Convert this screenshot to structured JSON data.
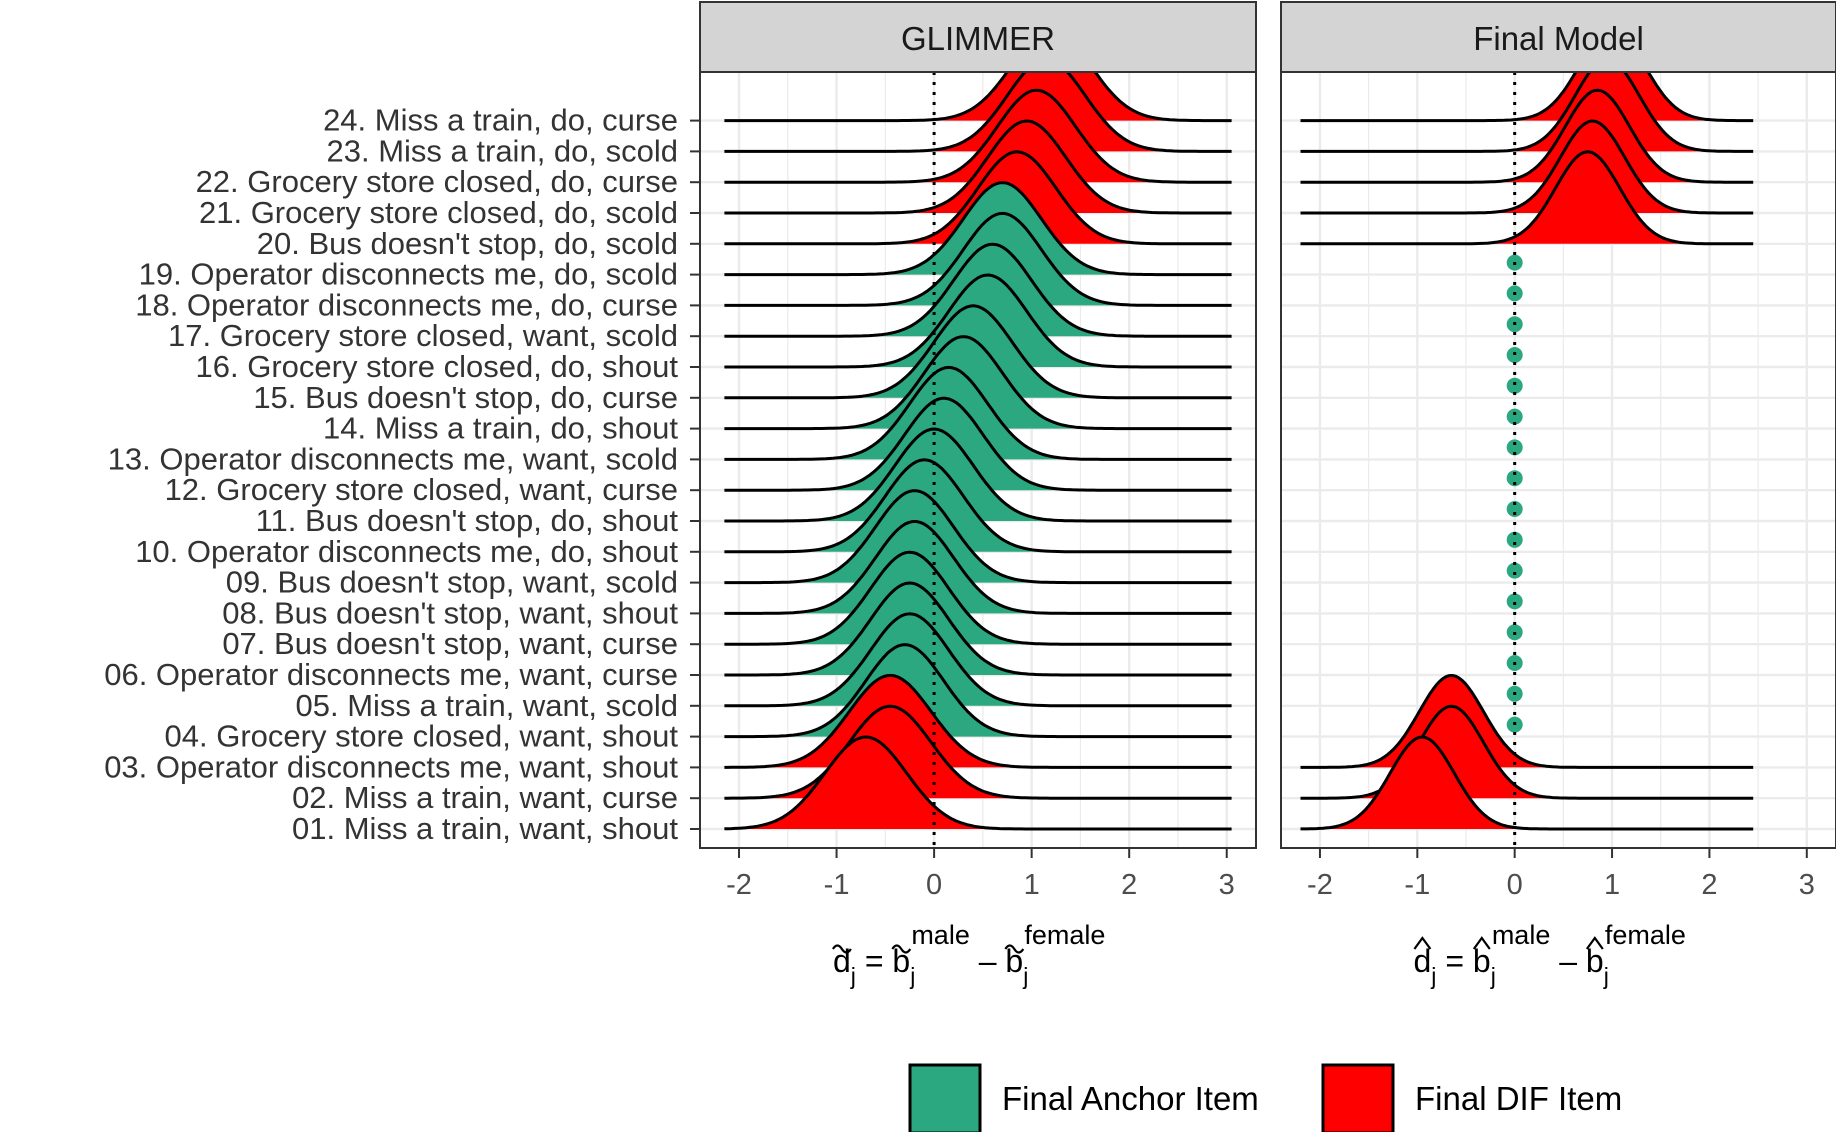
{
  "chart_data": {
    "type": "ridgeline",
    "panels": [
      {
        "strip": "GLIMMER",
        "xlabel": {
          "base": "d",
          "mark": "~",
          "sub": "j",
          "mid": "b",
          "sup1": "male",
          "sup2": "female"
        },
        "xlim": [
          -2.4,
          3.3
        ],
        "xticks": [
          -2,
          -1,
          0,
          1,
          2,
          3
        ],
        "reference_line": 0,
        "density_range": [
          -2.15,
          3.05
        ],
        "items": [
          {
            "label": "01. Miss a train, want, shout",
            "status": "dif",
            "mean": -0.7,
            "sd": 0.42
          },
          {
            "label": "02. Miss a train, want, curse",
            "status": "dif",
            "mean": -0.45,
            "sd": 0.42
          },
          {
            "label": "03. Operator disconnects me, want, shout",
            "status": "dif",
            "mean": -0.45,
            "sd": 0.42
          },
          {
            "label": "04. Grocery store closed, want, shout",
            "status": "anchor",
            "mean": -0.3,
            "sd": 0.4
          },
          {
            "label": "05. Miss a train, want, scold",
            "status": "anchor",
            "mean": -0.25,
            "sd": 0.4
          },
          {
            "label": "06. Operator disconnects me, want, curse",
            "status": "anchor",
            "mean": -0.25,
            "sd": 0.4
          },
          {
            "label": "07. Bus doesn't stop, want, curse",
            "status": "anchor",
            "mean": -0.25,
            "sd": 0.4
          },
          {
            "label": "08. Bus doesn't stop, want, shout",
            "status": "anchor",
            "mean": -0.2,
            "sd": 0.4
          },
          {
            "label": "09. Bus doesn't stop, want, scold",
            "status": "anchor",
            "mean": -0.2,
            "sd": 0.4
          },
          {
            "label": "10. Operator disconnects me, do, shout",
            "status": "anchor",
            "mean": -0.1,
            "sd": 0.4
          },
          {
            "label": "11. Bus doesn't stop, do, shout",
            "status": "anchor",
            "mean": 0.0,
            "sd": 0.4
          },
          {
            "label": "12. Grocery store closed, want, curse",
            "status": "anchor",
            "mean": 0.1,
            "sd": 0.4
          },
          {
            "label": "13. Operator disconnects me, want, scold",
            "status": "anchor",
            "mean": 0.15,
            "sd": 0.4
          },
          {
            "label": "14. Miss a train, do, shout",
            "status": "anchor",
            "mean": 0.3,
            "sd": 0.4
          },
          {
            "label": "15. Bus doesn't stop, do, curse",
            "status": "anchor",
            "mean": 0.4,
            "sd": 0.4
          },
          {
            "label": "16. Grocery store closed, do, shout",
            "status": "anchor",
            "mean": 0.55,
            "sd": 0.4
          },
          {
            "label": "17. Grocery store closed, want, scold",
            "status": "anchor",
            "mean": 0.6,
            "sd": 0.4
          },
          {
            "label": "18. Operator disconnects me, do, curse",
            "status": "anchor",
            "mean": 0.7,
            "sd": 0.4
          },
          {
            "label": "19. Operator disconnects me, do, scold",
            "status": "anchor",
            "mean": 0.7,
            "sd": 0.4
          },
          {
            "label": "20. Bus doesn't stop, do, scold",
            "status": "dif",
            "mean": 0.85,
            "sd": 0.4
          },
          {
            "label": "21. Grocery store closed, do, scold",
            "status": "dif",
            "mean": 0.95,
            "sd": 0.4
          },
          {
            "label": "22. Grocery store closed, do, curse",
            "status": "dif",
            "mean": 1.05,
            "sd": 0.4
          },
          {
            "label": "23. Miss a train, do, scold",
            "status": "dif",
            "mean": 1.15,
            "sd": 0.4
          },
          {
            "label": "24. Miss a train, do, curse",
            "status": "dif",
            "mean": 1.2,
            "sd": 0.4
          }
        ]
      },
      {
        "strip": "Final Model",
        "xlabel": {
          "base": "d",
          "mark": "^",
          "sub": "j",
          "mid": "b",
          "sup1": "male",
          "sup2": "female"
        },
        "xlim": [
          -2.4,
          3.3
        ],
        "xticks": [
          -2,
          -1,
          0,
          1,
          2,
          3
        ],
        "reference_line": 0,
        "density_range": [
          -2.2,
          2.45
        ],
        "items": [
          {
            "label": "01. Miss a train, want, shout",
            "status": "dif",
            "mean": -0.95,
            "sd": 0.33
          },
          {
            "label": "02. Miss a train, want, curse",
            "status": "dif",
            "mean": -0.65,
            "sd": 0.33
          },
          {
            "label": "03. Operator disconnects me, want, shout",
            "status": "dif",
            "mean": -0.65,
            "sd": 0.33
          },
          {
            "label": "04. Grocery store closed, want, shout",
            "status": "anchor",
            "value": 0
          },
          {
            "label": "05. Miss a train, want, scold",
            "status": "anchor",
            "value": 0
          },
          {
            "label": "06. Operator disconnects me, want, curse",
            "status": "anchor",
            "value": 0
          },
          {
            "label": "07. Bus doesn't stop, want, curse",
            "status": "anchor",
            "value": 0
          },
          {
            "label": "08. Bus doesn't stop, want, shout",
            "status": "anchor",
            "value": 0
          },
          {
            "label": "09. Bus doesn't stop, want, scold",
            "status": "anchor",
            "value": 0
          },
          {
            "label": "10. Operator disconnects me, do, shout",
            "status": "anchor",
            "value": 0
          },
          {
            "label": "11. Bus doesn't stop, do, shout",
            "status": "anchor",
            "value": 0
          },
          {
            "label": "12. Grocery store closed, want, curse",
            "status": "anchor",
            "value": 0
          },
          {
            "label": "13. Operator disconnects me, want, scold",
            "status": "anchor",
            "value": 0
          },
          {
            "label": "14. Miss a train, do, shout",
            "status": "anchor",
            "value": 0
          },
          {
            "label": "15. Bus doesn't stop, do, curse",
            "status": "anchor",
            "value": 0
          },
          {
            "label": "16. Grocery store closed, do, shout",
            "status": "anchor",
            "value": 0
          },
          {
            "label": "17. Grocery store closed, want, scold",
            "status": "anchor",
            "value": 0
          },
          {
            "label": "18. Operator disconnects me, do, curse",
            "status": "anchor",
            "value": 0
          },
          {
            "label": "19. Operator disconnects me, do, scold",
            "status": "anchor",
            "value": 0
          },
          {
            "label": "20. Bus doesn't stop, do, scold",
            "status": "dif",
            "mean": 0.75,
            "sd": 0.33
          },
          {
            "label": "21. Grocery store closed, do, scold",
            "status": "dif",
            "mean": 0.8,
            "sd": 0.33
          },
          {
            "label": "22. Grocery store closed, do, curse",
            "status": "dif",
            "mean": 0.85,
            "sd": 0.33
          },
          {
            "label": "23. Miss a train, do, scold",
            "status": "dif",
            "mean": 0.95,
            "sd": 0.33
          },
          {
            "label": "24. Miss a train, do, curse",
            "status": "dif",
            "mean": 1.0,
            "sd": 0.33
          }
        ]
      }
    ],
    "legend": {
      "position": "bottom",
      "entries": [
        {
          "key": "anchor",
          "label": "Final Anchor Item",
          "color": "#2ca880"
        },
        {
          "key": "dif",
          "label": "Final DIF Item",
          "color": "#ff0000"
        }
      ]
    },
    "grid": true,
    "colors": {
      "anchor": "#2ca880",
      "dif": "#ff0000",
      "strip": "#d4d4d4",
      "grid": "#ebebeb"
    }
  }
}
